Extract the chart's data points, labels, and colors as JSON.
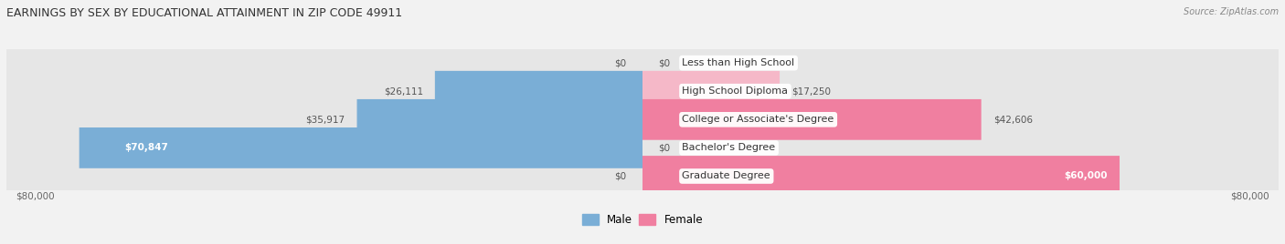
{
  "title": "EARNINGS BY SEX BY EDUCATIONAL ATTAINMENT IN ZIP CODE 49911",
  "source": "Source: ZipAtlas.com",
  "background_color": "#f2f2f2",
  "row_bg_color": "#e6e6e6",
  "categories": [
    "Less than High School",
    "High School Diploma",
    "College or Associate's Degree",
    "Bachelor's Degree",
    "Graduate Degree"
  ],
  "male_values": [
    0,
    26111,
    35917,
    70847,
    0
  ],
  "female_values": [
    0,
    17250,
    42606,
    0,
    60000
  ],
  "male_color": "#7aaed6",
  "female_color": "#f07fa0",
  "female_light_color": "#f5b8c8",
  "max_value": 80000,
  "male_labels": [
    "$0",
    "$26,111",
    "$35,917",
    "$70,847",
    "$0"
  ],
  "female_labels": [
    "$0",
    "$17,250",
    "$42,606",
    "$0",
    "$60,000"
  ],
  "x_left_label": "$80,000",
  "x_right_label": "$80,000",
  "legend_male": "Male",
  "legend_female": "Female"
}
